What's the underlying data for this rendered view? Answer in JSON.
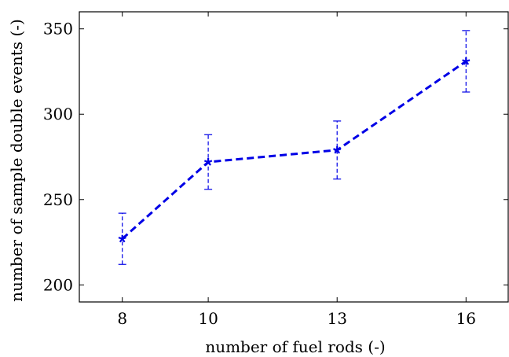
{
  "chart_data": {
    "type": "line",
    "xlabel": "number of fuel rods (-)",
    "ylabel": "number of sample double events (-)",
    "xlim": [
      7,
      17
    ],
    "ylim": [
      190,
      360
    ],
    "xticks": [
      8,
      10,
      13,
      16
    ],
    "yticks": [
      200,
      250,
      300,
      350
    ],
    "grid": false,
    "series": [
      {
        "x": [
          8,
          10,
          13,
          16
        ],
        "y": [
          227,
          272,
          279,
          331
        ],
        "err_low": [
          212,
          256,
          262,
          313
        ],
        "err_high": [
          242,
          288,
          296,
          349
        ],
        "color": "#0000e6",
        "line_style": "dashed",
        "marker": "star"
      }
    ]
  }
}
